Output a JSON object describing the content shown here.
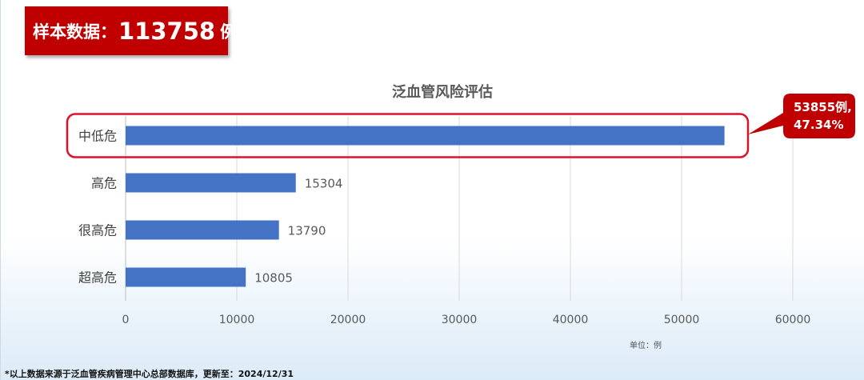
{
  "header": {
    "label": "样本数据：",
    "count": "113758",
    "unit": "例"
  },
  "chart_data": {
    "type": "bar",
    "orientation": "horizontal",
    "title": "泛血管风险评估",
    "categories": [
      "中低危",
      "高危",
      "很高危",
      "超高危"
    ],
    "values": [
      53855,
      15304,
      13790,
      10805
    ],
    "data_labels": [
      "",
      "15304",
      "13790",
      "10805"
    ],
    "xlim": [
      0,
      60000
    ],
    "xticks": [
      0,
      10000,
      20000,
      30000,
      40000,
      50000,
      60000
    ],
    "grid": true,
    "bar_color": "#4472c4",
    "highlight_category": "中低危",
    "highlight_color": "#e0102a",
    "callout": {
      "line1": "53855例,",
      "line2": "47.34%",
      "color": "#c00000"
    }
  },
  "unit_note": "单位：例",
  "footnote": "*以上数据来源于泛血管疾病管理中心总部数据库，更新至：2024/12/31"
}
